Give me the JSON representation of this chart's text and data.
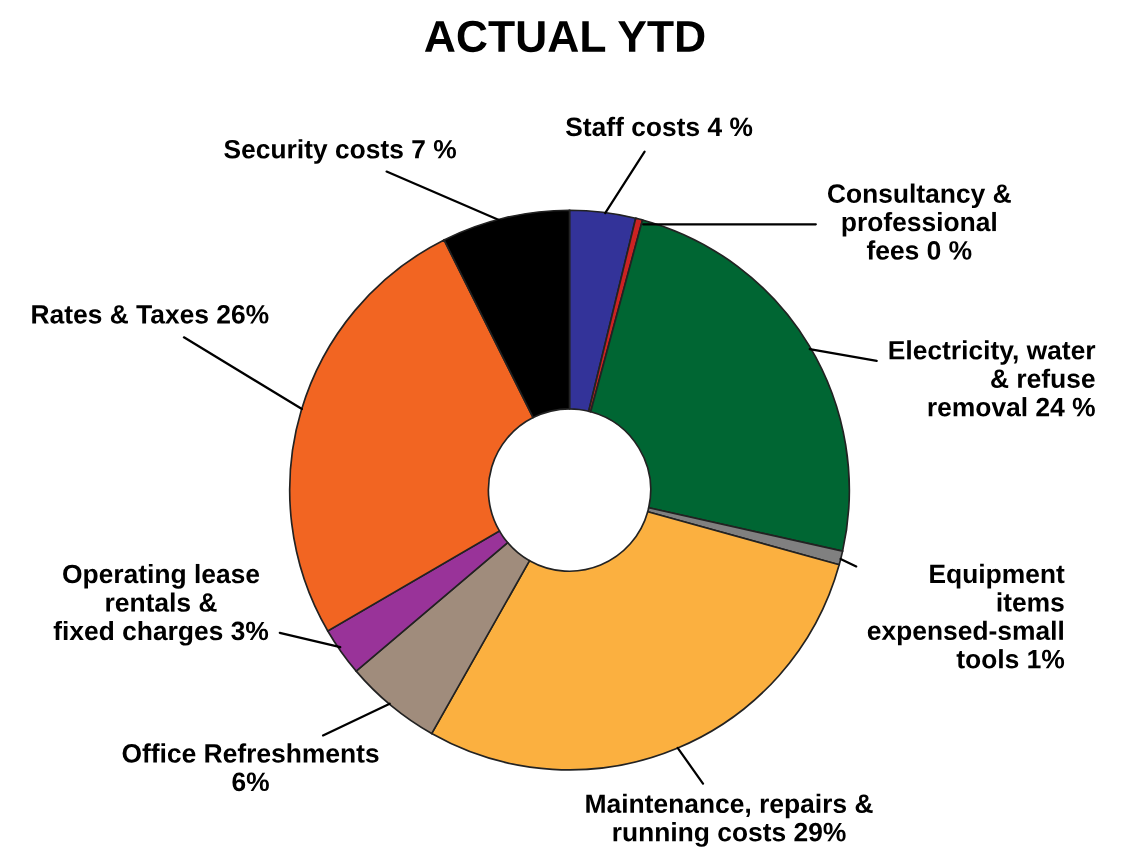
{
  "chart_data": {
    "type": "donut",
    "title": "ACTUAL YTD",
    "categories": [
      "Staff costs",
      "Consultancy &\nprofessional\nfees",
      "Electricity, water\n& refuse\nremoval",
      "Equipment\nitems\nexpensed-small\ntools",
      "Maintenance, repairs &\nrunning costs",
      "Office Refreshments\n",
      "Operating lease\nrentals &\nfixed charges",
      "Rates & Taxes",
      "Security costs"
    ],
    "values": [
      3.8,
      0.4,
      24.3,
      0.8,
      28.9,
      5.6,
      2.8,
      26.0,
      7.4
    ],
    "value_labels": [
      "4 %",
      "0 %",
      "24 %",
      "1%",
      "29%",
      "6%",
      "3%",
      "26%",
      "7 %"
    ],
    "colors": [
      "#333399",
      "#cc2222",
      "#006633",
      "#808080",
      "#fbb040",
      "#a08c7c",
      "#993399",
      "#f26522",
      "#000000"
    ],
    "legend": false
  }
}
